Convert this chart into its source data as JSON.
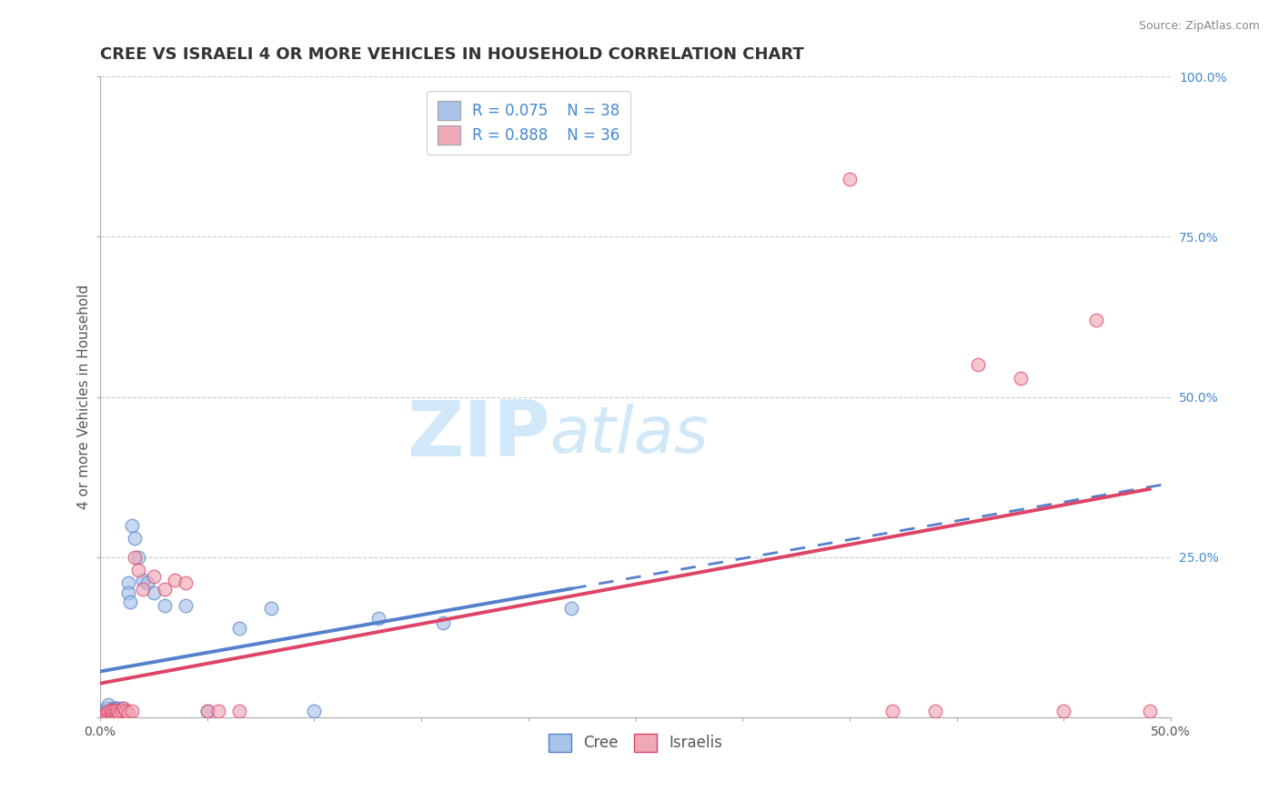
{
  "title": "CREE VS ISRAELI 4 OR MORE VEHICLES IN HOUSEHOLD CORRELATION CHART",
  "source_text": "Source: ZipAtlas.com",
  "ylabel": "4 or more Vehicles in Household",
  "xlim": [
    0.0,
    0.5
  ],
  "ylim": [
    0.0,
    1.0
  ],
  "xticks": [
    0.0,
    0.05,
    0.1,
    0.15,
    0.2,
    0.25,
    0.3,
    0.35,
    0.4,
    0.45,
    0.5
  ],
  "xtick_labels": [
    "0.0%",
    "",
    "",
    "",
    "",
    "",
    "",
    "",
    "",
    "",
    "50.0%"
  ],
  "ytick_vals": [
    0.0,
    0.25,
    0.5,
    0.75,
    1.0
  ],
  "ytick_labels": [
    "",
    "25.0%",
    "50.0%",
    "75.0%",
    "100.0%"
  ],
  "cree_R": 0.075,
  "cree_N": 38,
  "israelis_R": 0.888,
  "israelis_N": 36,
  "cree_color": "#a8c4e8",
  "israelis_color": "#f0a8b8",
  "cree_line_color": "#5580cc",
  "israelis_line_color": "#dd4466",
  "background_color": "#ffffff",
  "grid_color": "#cccccc",
  "watermark_color": "#d0e8f8",
  "cree_x": [
    0.001,
    0.002,
    0.003,
    0.003,
    0.004,
    0.004,
    0.005,
    0.005,
    0.006,
    0.006,
    0.007,
    0.007,
    0.008,
    0.008,
    0.009,
    0.009,
    0.01,
    0.01,
    0.011,
    0.012,
    0.013,
    0.013,
    0.014,
    0.015,
    0.016,
    0.018,
    0.02,
    0.022,
    0.025,
    0.03,
    0.04,
    0.05,
    0.065,
    0.08,
    0.1,
    0.13,
    0.16,
    0.22
  ],
  "cree_y": [
    0.005,
    0.01,
    0.008,
    0.015,
    0.01,
    0.02,
    0.008,
    0.012,
    0.01,
    0.015,
    0.008,
    0.015,
    0.01,
    0.015,
    0.008,
    0.012,
    0.01,
    0.015,
    0.012,
    0.01,
    0.21,
    0.195,
    0.18,
    0.3,
    0.28,
    0.25,
    0.215,
    0.21,
    0.195,
    0.175,
    0.175,
    0.01,
    0.14,
    0.17,
    0.01,
    0.155,
    0.148,
    0.17
  ],
  "israelis_x": [
    0.001,
    0.002,
    0.003,
    0.004,
    0.004,
    0.005,
    0.005,
    0.006,
    0.006,
    0.007,
    0.007,
    0.008,
    0.009,
    0.01,
    0.011,
    0.012,
    0.013,
    0.015,
    0.016,
    0.018,
    0.02,
    0.025,
    0.03,
    0.035,
    0.04,
    0.05,
    0.055,
    0.065,
    0.35,
    0.37,
    0.39,
    0.41,
    0.43,
    0.45,
    0.465,
    0.49
  ],
  "israelis_y": [
    0.003,
    0.005,
    0.008,
    0.005,
    0.01,
    0.008,
    0.012,
    0.005,
    0.01,
    0.008,
    0.012,
    0.01,
    0.008,
    0.01,
    0.015,
    0.01,
    0.008,
    0.01,
    0.25,
    0.23,
    0.2,
    0.22,
    0.2,
    0.215,
    0.21,
    0.01,
    0.01,
    0.01,
    0.84,
    0.01,
    0.01,
    0.55,
    0.53,
    0.01,
    0.62,
    0.01
  ],
  "title_fontsize": 13,
  "axis_label_fontsize": 11,
  "tick_fontsize": 10,
  "legend_fontsize": 12
}
